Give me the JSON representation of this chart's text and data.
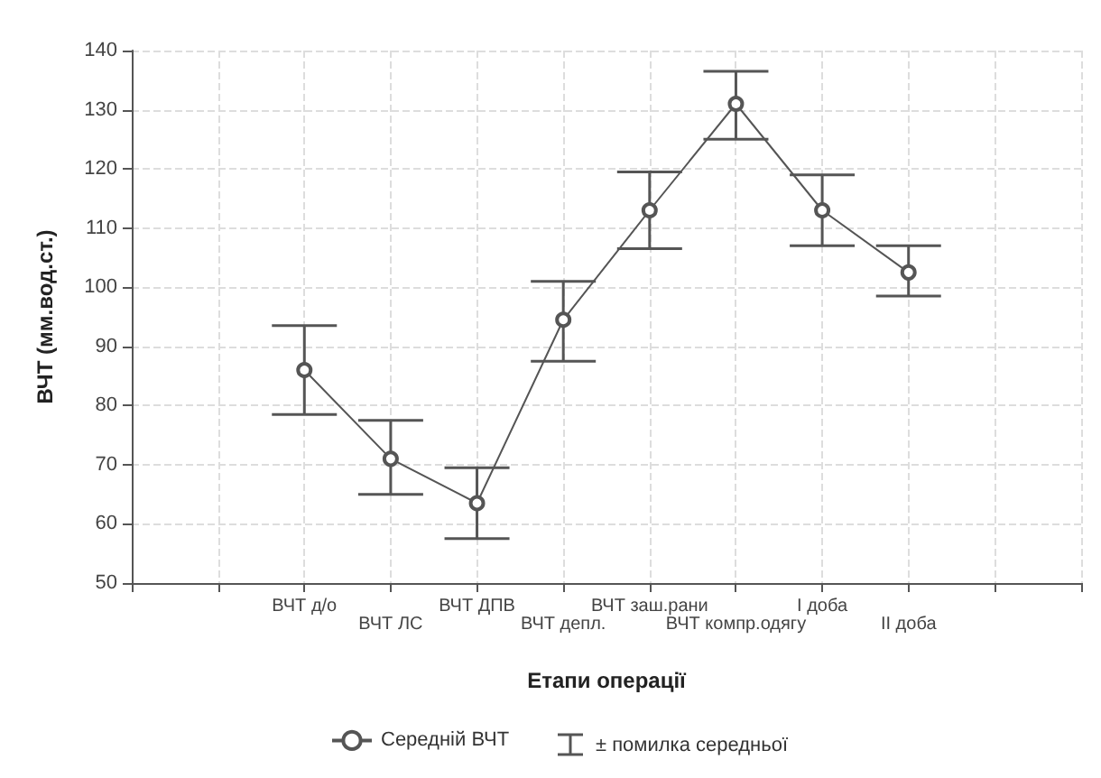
{
  "chart_data": {
    "type": "line",
    "xlabel": "Етапи операції",
    "ylabel": "ВЧТ (мм.вод.ст.)",
    "categories": [
      null,
      null,
      "ВЧТ д/о",
      "ВЧТ ЛС",
      "ВЧТ ДПВ",
      "ВЧТ депл.",
      "ВЧТ заш.рани",
      "ВЧТ компр.одягу",
      "І доба",
      "ІІ доба",
      null,
      null
    ],
    "series": [
      {
        "name": "Середній ВЧТ",
        "color": "#555555",
        "values": [
          null,
          null,
          86,
          71,
          63.5,
          94.5,
          113,
          131,
          113,
          102.5,
          null,
          null
        ],
        "errors": [
          null,
          null,
          [
            78.5,
            93.5
          ],
          [
            65,
            77.5
          ],
          [
            57.5,
            69.5
          ],
          [
            87.5,
            101
          ],
          [
            106.5,
            119.5
          ],
          [
            125,
            136.5
          ],
          [
            107,
            119
          ],
          [
            98.5,
            107
          ],
          null,
          null
        ]
      }
    ],
    "annotations": [
      "± помилка середньої"
    ],
    "ylim": [
      50,
      140
    ],
    "yticks": [
      50,
      60,
      70,
      80,
      90,
      100,
      110,
      120,
      130,
      140
    ],
    "grid": true,
    "legend": "bottom",
    "marker": "circle",
    "line_style": "solid"
  }
}
